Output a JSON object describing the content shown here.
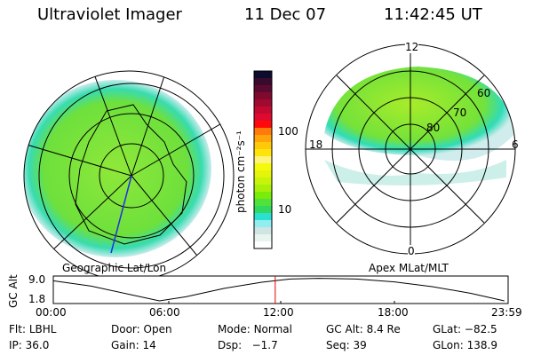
{
  "header": {
    "instrument": "Ultraviolet Imager",
    "date": "11 Dec 07",
    "time": "11:42:45 UT"
  },
  "colorbar": {
    "label": "photon cm⁻²s⁻¹",
    "ticks": [
      "100",
      "10"
    ],
    "colors": [
      "#0b0c2e",
      "#3a0a2c",
      "#5a0a30",
      "#800a2e",
      "#a00a30",
      "#c20a30",
      "#e00a30",
      "#ff0a0a",
      "#ff7a0a",
      "#ffa40a",
      "#ffc80a",
      "#ffe40a",
      "#fff47a",
      "#f4fa0a",
      "#e4f40a",
      "#c8f40a",
      "#a8f00a",
      "#7aec0a",
      "#50e23a",
      "#30d860",
      "#2ae0d0",
      "#90eef0",
      "#d0e4e4",
      "#e8f4ee",
      "#ffffff"
    ]
  },
  "left_panel": {
    "caption": "Geographic Lat/Lon"
  },
  "right_panel": {
    "caption": "Apex MLat/MLT",
    "mlt_labels": {
      "top": "12",
      "bottom": "0",
      "left": "18",
      "right": "6"
    },
    "lat_labels": [
      "80",
      "70",
      "60"
    ]
  },
  "altitude_plot": {
    "ylabel": "GC Alt",
    "yticks": [
      "9.0",
      "1.8"
    ],
    "xticks": [
      "00:00",
      "06:00",
      "12:00",
      "18:00",
      "23:59"
    ],
    "current_hour": 11.71,
    "curve_hours": [
      0,
      2,
      4,
      5.6,
      7,
      9,
      11,
      12.5,
      14,
      16,
      18,
      20,
      22,
      23.8
    ],
    "curve_alt": [
      8.6,
      6.8,
      4.0,
      1.8,
      3.2,
      6.0,
      8.1,
      9.2,
      9.4,
      9.2,
      8.2,
      6.6,
      4.4,
      1.8
    ],
    "line_color": "#000000",
    "marker_color": "#e00000"
  },
  "info": [
    {
      "label": "Flt:",
      "value": "LBHL"
    },
    {
      "label": "Door:",
      "value": "Open"
    },
    {
      "label": "Mode:",
      "value": "Normal"
    },
    {
      "label": "GC Alt:",
      "value": "8.4 Re"
    },
    {
      "label": "GLat:",
      "value": "−82.5"
    },
    {
      "label": "IP:",
      "value": "36.0"
    },
    {
      "label": "Gain:",
      "value": "14"
    },
    {
      "label": "Dsp:",
      "value": "  −1.7"
    },
    {
      "label": "Seq:",
      "value": "39"
    },
    {
      "label": "GLon:",
      "value": "138.9"
    }
  ]
}
